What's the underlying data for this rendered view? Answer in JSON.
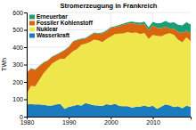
{
  "chart_data": {
    "type": "area",
    "stacked": true,
    "title": "Stromerzeugung in Frankreich",
    "ylabel": "TWh",
    "x": [
      1980,
      1981,
      1982,
      1983,
      1984,
      1985,
      1986,
      1987,
      1988,
      1989,
      1990,
      1991,
      1992,
      1993,
      1994,
      1995,
      1996,
      1997,
      1998,
      1999,
      2000,
      2001,
      2002,
      2003,
      2004,
      2005,
      2006,
      2007,
      2008,
      2009,
      2010,
      2011,
      2012,
      2013,
      2014,
      2015,
      2016,
      2017,
      2018,
      2019
    ],
    "series": [
      {
        "name": "Wasserkraft",
        "color": "#1a7bbf",
        "values": [
          70,
          72,
          71,
          71,
          68,
          64,
          64,
          70,
          73,
          45,
          57,
          62,
          68,
          64,
          78,
          72,
          66,
          64,
          62,
          72,
          67,
          75,
          62,
          60,
          60,
          52,
          56,
          58,
          64,
          57,
          63,
          45,
          58,
          71,
          65,
          55,
          60,
          49,
          63,
          56
        ]
      },
      {
        "name": "Nuklear",
        "color": "#efe64c",
        "values": [
          61,
          105,
          103,
          140,
          182,
          213,
          241,
          250,
          260,
          288,
          298,
          315,
          322,
          350,
          342,
          358,
          378,
          376,
          368,
          375,
          395,
          401,
          416,
          420,
          427,
          430,
          428,
          418,
          418,
          390,
          408,
          421,
          405,
          404,
          416,
          417,
          384,
          379,
          393,
          379
        ]
      },
      {
        "name": "Fossiler Kohlenstoff",
        "color": "#d9650c",
        "values": [
          119,
          100,
          95,
          80,
          60,
          45,
          38,
          35,
          35,
          48,
          45,
          55,
          50,
          32,
          30,
          35,
          37,
          38,
          50,
          45,
          48,
          40,
          44,
          50,
          49,
          57,
          50,
          53,
          52,
          50,
          55,
          46,
          47,
          43,
          25,
          34,
          45,
          54,
          39,
          42
        ]
      },
      {
        "name": "Erneuerbar",
        "color": "#1b9e77",
        "values": [
          3,
          3,
          3,
          3,
          3,
          3,
          3,
          3,
          3,
          3,
          3,
          3,
          4,
          4,
          4,
          4,
          4,
          4,
          5,
          5,
          5,
          5,
          6,
          6,
          7,
          8,
          10,
          12,
          14,
          17,
          20,
          25,
          30,
          33,
          34,
          38,
          40,
          44,
          48,
          54
        ]
      }
    ],
    "xlim": [
      1980,
      2019
    ],
    "xticks": [
      1980,
      1990,
      2000,
      2010
    ],
    "ylim": [
      0,
      600
    ],
    "yticks": [
      0,
      100,
      200,
      300,
      400,
      500,
      600
    ],
    "grid": true,
    "legend": "upper left"
  }
}
